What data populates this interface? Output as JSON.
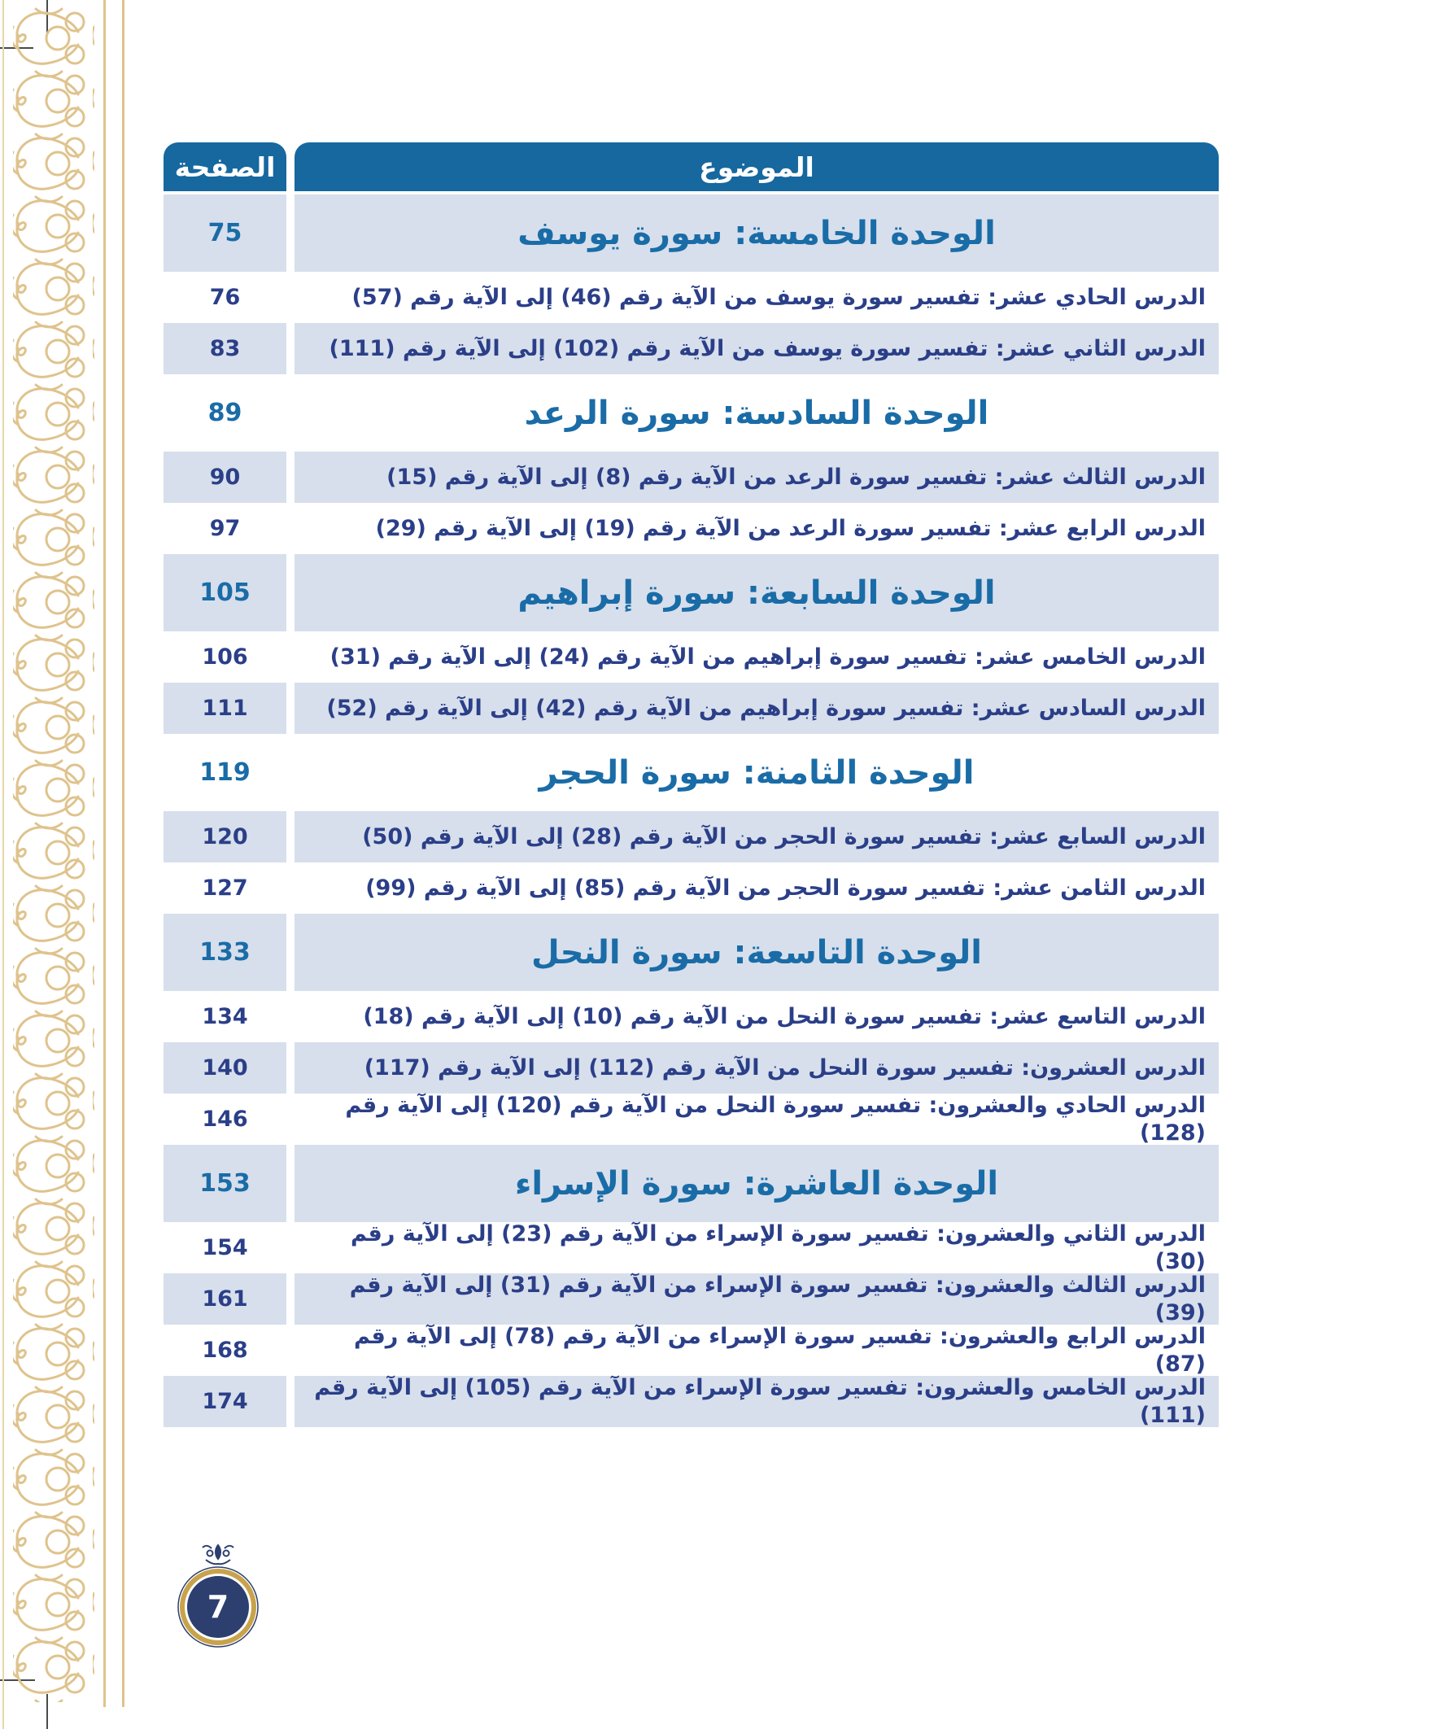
{
  "table": {
    "header_page": "الصفحة",
    "header_topic": "الموضوع",
    "rows": [
      {
        "type": "unit",
        "shade": "light",
        "page": "75",
        "topic": "الوحدة الخامسة: سورة يوسف"
      },
      {
        "type": "lesson",
        "shade": "white",
        "page": "76",
        "topic": "الدرس الحادي عشر: تفسير سورة يوسف من الآية رقم (46) إلى الآية رقم (57)"
      },
      {
        "type": "lesson",
        "shade": "light",
        "page": "83",
        "topic": "الدرس الثاني عشر: تفسير سورة يوسف من الآية رقم (102) إلى الآية رقم (111)"
      },
      {
        "type": "unit",
        "shade": "white",
        "page": "89",
        "topic": "الوحدة السادسة: سورة الرعد"
      },
      {
        "type": "lesson",
        "shade": "light",
        "page": "90",
        "topic": "الدرس الثالث عشر: تفسير سورة الرعد من الآية رقم (8) إلى الآية رقم (15)"
      },
      {
        "type": "lesson",
        "shade": "white",
        "page": "97",
        "topic": "الدرس الرابع عشر: تفسير سورة الرعد من الآية رقم (19) إلى الآية رقم (29)"
      },
      {
        "type": "unit",
        "shade": "light",
        "page": "105",
        "topic": "الوحدة السابعة: سورة إبراهيم"
      },
      {
        "type": "lesson",
        "shade": "white",
        "page": "106",
        "topic": "الدرس الخامس عشر: تفسير سورة إبراهيم من الآية رقم (24) إلى الآية رقم (31)"
      },
      {
        "type": "lesson",
        "shade": "light",
        "page": "111",
        "topic": "الدرس السادس عشر: تفسير سورة إبراهيم من الآية رقم (42) إلى الآية رقم (52)"
      },
      {
        "type": "unit",
        "shade": "white",
        "page": "119",
        "topic": "الوحدة الثامنة: سورة الحجر"
      },
      {
        "type": "lesson",
        "shade": "light",
        "page": "120",
        "topic": "الدرس السابع عشر: تفسير سورة الحجر من الآية رقم (28) إلى الآية رقم (50)"
      },
      {
        "type": "lesson",
        "shade": "white",
        "page": "127",
        "topic": "الدرس الثامن عشر: تفسير سورة الحجر من الآية رقم (85) إلى الآية رقم (99)"
      },
      {
        "type": "unit",
        "shade": "light",
        "page": "133",
        "topic": "الوحدة التاسعة: سورة النحل"
      },
      {
        "type": "lesson",
        "shade": "white",
        "page": "134",
        "topic": "الدرس التاسع عشر: تفسير سورة النحل من الآية رقم (10) إلى الآية رقم (18)"
      },
      {
        "type": "lesson",
        "shade": "light",
        "page": "140",
        "topic": "الدرس العشرون: تفسير سورة النحل من الآية رقم (112) إلى الآية رقم (117)"
      },
      {
        "type": "lesson",
        "shade": "white",
        "page": "146",
        "topic": "الدرس الحادي والعشرون: تفسير سورة النحل من الآية رقم (120) إلى الآية رقم (128)"
      },
      {
        "type": "unit",
        "shade": "light",
        "page": "153",
        "topic": "الوحدة العاشرة: سورة الإسراء"
      },
      {
        "type": "lesson",
        "shade": "white",
        "page": "154",
        "topic": "الدرس الثاني والعشرون: تفسير سورة الإسراء من الآية رقم (23) إلى الآية رقم (30)"
      },
      {
        "type": "lesson",
        "shade": "light",
        "page": "161",
        "topic": "الدرس الثالث والعشرون: تفسير سورة الإسراء من الآية رقم (31) إلى الآية رقم (39)"
      },
      {
        "type": "lesson",
        "shade": "white",
        "page": "168",
        "topic": "الدرس الرابع والعشرون: تفسير سورة الإسراء من الآية رقم (78) إلى الآية رقم (87)"
      },
      {
        "type": "lesson",
        "shade": "light",
        "page": "174",
        "topic": "الدرس الخامس والعشرون: تفسير سورة الإسراء من الآية رقم (105) إلى الآية رقم (111)"
      }
    ]
  },
  "footer": {
    "page_number": "7",
    "finial_icon": "finial-ornament-icon"
  },
  "colors": {
    "header_bg": "#16689F",
    "unit_text": "#1A6CA7",
    "lesson_text": "#2B3F88",
    "row_light_bg": "#D7DFEC",
    "border_gold": "#DFC38D",
    "badge_navy": "#2C3F6F",
    "badge_gold": "#C8A34B",
    "crop_mark": "#4A4A4A"
  }
}
